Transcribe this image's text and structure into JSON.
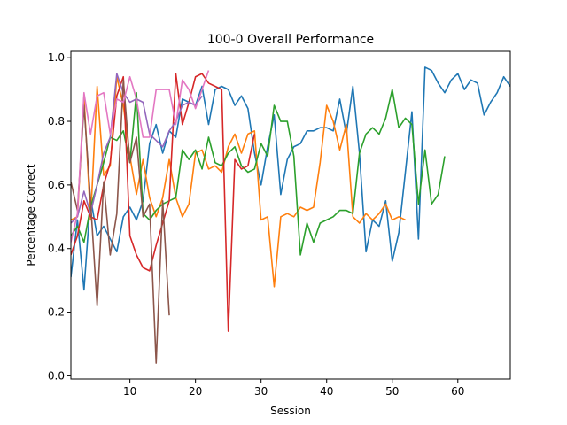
{
  "chart_data": {
    "type": "line",
    "title": "100-0 Overall Performance",
    "xlabel": "Session",
    "ylabel": "Percentage Correct",
    "xlim": [
      1,
      68
    ],
    "ylim": [
      -0.01,
      1.02
    ],
    "xticks": [
      10,
      20,
      30,
      40,
      50,
      60
    ],
    "xtick_labels": [
      "10",
      "20",
      "30",
      "40",
      "50",
      "60"
    ],
    "yticks": [
      0.0,
      0.2,
      0.4,
      0.6,
      0.8,
      1.0
    ],
    "ytick_labels": [
      "0.0",
      "0.2",
      "0.4",
      "0.6",
      "0.8",
      "1.0"
    ],
    "grid": false,
    "legend": false,
    "series": [
      {
        "color": "#1f77b4",
        "x": [
          1,
          2,
          3,
          4,
          5,
          6,
          7,
          8,
          9,
          10,
          11,
          12,
          13,
          14,
          15,
          16,
          17,
          18,
          19,
          20,
          21,
          22,
          23,
          24,
          25,
          26,
          27,
          28,
          29,
          30,
          31,
          32,
          33,
          34,
          35,
          36,
          37,
          38,
          39,
          40,
          41,
          42,
          43,
          44,
          45,
          46,
          47,
          48,
          49,
          50,
          51,
          52,
          53,
          54,
          55,
          56,
          57,
          58,
          59,
          60,
          61,
          62,
          63,
          64,
          65,
          66,
          67,
          68
        ],
        "values": [
          0.31,
          0.49,
          0.27,
          0.56,
          0.44,
          0.47,
          0.43,
          0.39,
          0.5,
          0.53,
          0.49,
          0.55,
          0.73,
          0.79,
          0.7,
          0.77,
          0.75,
          0.87,
          0.86,
          0.85,
          0.91,
          0.79,
          0.9,
          0.91,
          0.9,
          0.85,
          0.88,
          0.84,
          0.7,
          0.6,
          0.72,
          0.82,
          0.57,
          0.68,
          0.72,
          0.73,
          0.77,
          0.77,
          0.78,
          0.78,
          0.77,
          0.87,
          0.76,
          0.91,
          0.7,
          0.39,
          0.49,
          0.47,
          0.55,
          0.36,
          0.45,
          0.64,
          0.83,
          0.43,
          0.97,
          0.96,
          0.92,
          0.89,
          0.93,
          0.95,
          0.9,
          0.93,
          0.92,
          0.82,
          0.86,
          0.89,
          0.94,
          0.91
        ]
      },
      {
        "color": "#ff7f0e",
        "x": [
          1,
          2,
          3,
          4,
          5,
          6,
          7,
          8,
          9,
          10,
          11,
          12,
          13,
          14,
          15,
          16,
          17,
          18,
          19,
          20,
          21,
          22,
          23,
          24,
          25,
          26,
          27,
          28,
          29,
          30,
          31,
          32,
          33,
          34,
          35,
          36,
          37,
          38,
          39,
          40,
          41,
          42,
          43,
          44,
          45,
          46,
          47,
          48,
          49,
          50,
          51,
          52
        ],
        "values": [
          0.49,
          0.5,
          0.88,
          0.49,
          0.91,
          0.63,
          0.66,
          0.94,
          0.85,
          0.69,
          0.57,
          0.68,
          0.56,
          0.5,
          0.56,
          0.68,
          0.56,
          0.5,
          0.54,
          0.7,
          0.71,
          0.65,
          0.66,
          0.64,
          0.72,
          0.76,
          0.7,
          0.76,
          0.77,
          0.49,
          0.5,
          0.28,
          0.5,
          0.51,
          0.5,
          0.53,
          0.52,
          0.53,
          0.67,
          0.85,
          0.8,
          0.71,
          0.79,
          0.5,
          0.48,
          0.51,
          0.49,
          0.51,
          0.54,
          0.49,
          0.5,
          0.49
        ]
      },
      {
        "color": "#2ca02c",
        "x": [
          1,
          2,
          3,
          4,
          5,
          6,
          7,
          8,
          9,
          10,
          11,
          12,
          13,
          14,
          15,
          16,
          17,
          18,
          19,
          20,
          21,
          22,
          23,
          24,
          25,
          26,
          27,
          28,
          29,
          30,
          31,
          32,
          33,
          34,
          35,
          36,
          37,
          38,
          39,
          40,
          41,
          42,
          43,
          44,
          45,
          46,
          47,
          48,
          49,
          50,
          51,
          52,
          53,
          54,
          55,
          56,
          57,
          58
        ],
        "values": [
          0.44,
          0.47,
          0.42,
          0.53,
          0.6,
          0.67,
          0.75,
          0.74,
          0.77,
          0.67,
          0.89,
          0.51,
          0.49,
          0.52,
          0.54,
          0.55,
          0.56,
          0.71,
          0.68,
          0.71,
          0.65,
          0.75,
          0.67,
          0.66,
          0.7,
          0.72,
          0.66,
          0.64,
          0.65,
          0.73,
          0.69,
          0.85,
          0.8,
          0.8,
          0.69,
          0.38,
          0.48,
          0.42,
          0.48,
          0.49,
          0.5,
          0.52,
          0.52,
          0.51,
          0.7,
          0.76,
          0.78,
          0.76,
          0.81,
          0.9,
          0.78,
          0.81,
          0.79,
          0.54,
          0.71,
          0.54,
          0.57,
          0.69
        ]
      },
      {
        "color": "#d62728",
        "x": [
          1,
          2,
          3,
          4,
          5,
          6,
          7,
          8,
          9,
          10,
          11,
          12,
          13,
          14,
          15,
          16,
          17,
          18,
          19,
          20,
          21,
          22,
          23,
          24,
          25,
          26,
          27,
          28,
          29
        ],
        "values": [
          0.38,
          0.44,
          0.55,
          0.5,
          0.49,
          0.6,
          0.67,
          0.88,
          0.94,
          0.44,
          0.38,
          0.34,
          0.33,
          0.41,
          0.48,
          0.55,
          0.95,
          0.79,
          0.86,
          0.94,
          0.95,
          0.92,
          0.91,
          0.9,
          0.14,
          0.68,
          0.65,
          0.66,
          0.76
        ]
      },
      {
        "color": "#9467bd",
        "x": [
          1,
          2,
          3,
          4,
          5,
          6,
          7,
          8,
          9,
          10,
          11,
          12,
          13,
          14,
          15,
          16,
          17,
          18,
          19,
          20,
          21
        ],
        "values": [
          0.48,
          0.5,
          0.58,
          0.51,
          0.6,
          0.7,
          0.75,
          0.95,
          0.89,
          0.86,
          0.87,
          0.86,
          0.76,
          0.74,
          0.72,
          0.77,
          0.8,
          0.85,
          0.86,
          0.85,
          0.88
        ]
      },
      {
        "color": "#8c564b",
        "x": [
          1,
          2,
          3,
          4,
          5,
          6,
          7,
          8,
          9,
          10,
          11,
          12,
          13,
          14,
          15,
          16
        ],
        "values": [
          0.61,
          0.52,
          0.85,
          0.55,
          0.22,
          0.61,
          0.38,
          0.51,
          0.93,
          0.67,
          0.75,
          0.5,
          0.54,
          0.04,
          0.55,
          0.19
        ]
      },
      {
        "color": "#e377c2",
        "x": [
          1,
          2,
          3,
          4,
          5,
          6,
          7,
          8,
          9,
          10,
          11,
          12,
          13,
          14,
          15,
          16,
          17,
          18,
          19,
          20,
          21,
          22
        ],
        "values": [
          0.42,
          0.51,
          0.89,
          0.76,
          0.88,
          0.89,
          0.76,
          0.87,
          0.86,
          0.94,
          0.87,
          0.75,
          0.75,
          0.9,
          0.9,
          0.9,
          0.79,
          0.93,
          0.9,
          0.84,
          0.9,
          0.96
        ]
      }
    ]
  }
}
